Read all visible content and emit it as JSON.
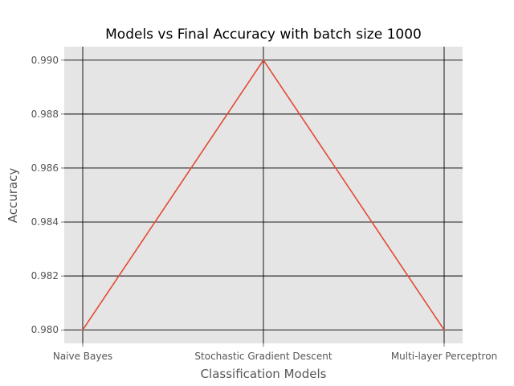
{
  "chart_data": {
    "type": "line",
    "title": "Models vs Final Accuracy with batch size 1000",
    "xlabel": "Classification Models",
    "ylabel": "Accuracy",
    "categories": [
      "Naive Bayes",
      "Stochastic Gradient Descent",
      "Multi-layer Perceptron"
    ],
    "values": [
      0.98,
      0.99,
      0.98
    ],
    "ylim": [
      0.9795,
      0.9905
    ],
    "yticks": [
      0.98,
      0.982,
      0.984,
      0.986,
      0.988,
      0.99
    ],
    "ytick_labels": [
      "0.980",
      "0.982",
      "0.984",
      "0.986",
      "0.988",
      "0.990"
    ],
    "grid": true,
    "legend": "none",
    "colors": {
      "line": "#e24a33",
      "plot_background": "#e5e5e5",
      "grid": "#000000"
    }
  }
}
